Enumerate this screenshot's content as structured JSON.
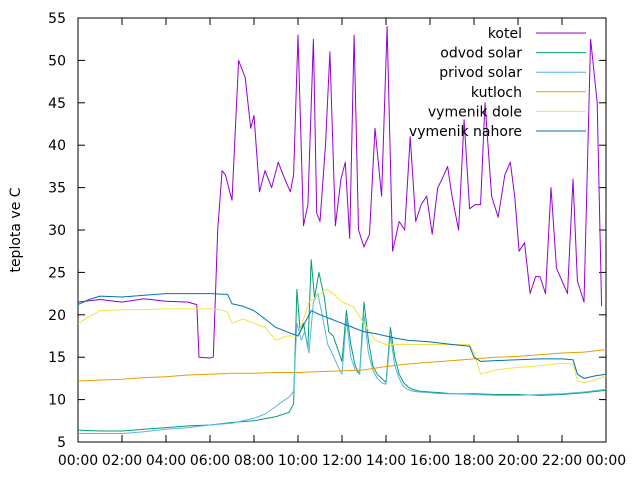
{
  "chart_data": {
    "type": "line",
    "ylabel": "teplota ve C",
    "xlabel": "",
    "ylim": [
      5,
      55
    ],
    "xlim": [
      0,
      24
    ],
    "y_ticks": [
      5,
      10,
      15,
      20,
      25,
      30,
      35,
      40,
      45,
      50,
      55
    ],
    "x_ticks": [
      0,
      2,
      4,
      6,
      8,
      10,
      12,
      14,
      16,
      18,
      20,
      22,
      24
    ],
    "x_tick_labels": [
      "00:00",
      "02:00",
      "04:00",
      "06:00",
      "08:00",
      "10:00",
      "12:00",
      "14:00",
      "16:00",
      "18:00",
      "20:00",
      "22:00",
      "00:00"
    ],
    "grid": false,
    "legend_position": "top-right",
    "series": [
      {
        "name": "kotel",
        "color": "#9400d3",
        "x": [
          0,
          1,
          2,
          3,
          4,
          5,
          5.4,
          5.5,
          6.0,
          6.15,
          6.35,
          6.55,
          6.7,
          7.0,
          7.3,
          7.6,
          7.85,
          8.0,
          8.25,
          8.5,
          8.8,
          9.1,
          9.4,
          9.65,
          9.8,
          10.0,
          10.25,
          10.45,
          10.7,
          10.85,
          11.0,
          11.25,
          11.45,
          11.7,
          11.95,
          12.15,
          12.35,
          12.55,
          12.75,
          13.0,
          13.25,
          13.5,
          13.8,
          14.05,
          14.3,
          14.6,
          14.85,
          15.1,
          15.35,
          15.6,
          15.85,
          16.1,
          16.35,
          16.55,
          16.8,
          17.0,
          17.3,
          17.55,
          17.8,
          18.05,
          18.3,
          18.5,
          18.8,
          19.1,
          19.4,
          19.65,
          19.85,
          20.05,
          20.3,
          20.55,
          20.8,
          21.0,
          21.25,
          21.5,
          21.75,
          22.0,
          22.25,
          22.5,
          22.7,
          23.0,
          23.3,
          23.6,
          23.8
        ],
        "values": [
          21.5,
          21.8,
          21.5,
          21.9,
          21.6,
          21.5,
          21.2,
          15.0,
          14.9,
          15.0,
          30.0,
          37.0,
          36.5,
          33.5,
          50.0,
          48.0,
          42.0,
          43.5,
          34.5,
          37.0,
          35.0,
          38.0,
          36.0,
          34.5,
          36.5,
          53.0,
          30.5,
          33.0,
          52.5,
          32.0,
          31.0,
          40.0,
          51.0,
          30.5,
          36.0,
          38.0,
          29.0,
          53.0,
          30.0,
          28.0,
          29.5,
          42.0,
          34.0,
          54.0,
          27.5,
          31.0,
          30.0,
          41.0,
          31.0,
          33.0,
          34.0,
          29.5,
          35.0,
          36.0,
          37.5,
          34.0,
          30.0,
          43.0,
          32.5,
          33.0,
          33.0,
          45.0,
          34.0,
          31.5,
          36.5,
          38.0,
          34.0,
          27.5,
          28.5,
          22.5,
          24.5,
          24.5,
          22.5,
          35.0,
          25.5,
          24.0,
          22.5,
          36.0,
          24.0,
          21.5,
          52.5,
          45.0,
          21.0
        ]
      },
      {
        "name": "odvod solar",
        "color": "#009e73",
        "x": [
          0,
          1,
          2,
          3,
          4,
          5,
          6,
          7,
          8,
          9,
          9.6,
          9.8,
          9.95,
          10.1,
          10.25,
          10.45,
          10.6,
          10.75,
          10.95,
          11.2,
          11.4,
          11.6,
          11.8,
          12.0,
          12.2,
          12.4,
          12.6,
          12.8,
          13.0,
          13.2,
          13.4,
          13.6,
          13.8,
          14.0,
          14.2,
          14.4,
          14.6,
          14.8,
          15.0,
          15.2,
          15.5,
          16.0,
          16.5,
          17.0,
          18.0,
          19.0,
          20.0,
          21.0,
          22.0,
          23.0,
          24.0
        ],
        "values": [
          6.4,
          6.3,
          6.3,
          6.5,
          6.7,
          6.9,
          7.0,
          7.3,
          7.5,
          8.0,
          8.5,
          9.5,
          23.0,
          18.0,
          19.0,
          16.0,
          26.5,
          22.0,
          25.0,
          22.0,
          18.0,
          17.5,
          16.0,
          14.5,
          20.5,
          16.5,
          14.0,
          13.0,
          21.5,
          17.0,
          14.0,
          13.0,
          12.5,
          12.0,
          18.5,
          15.0,
          13.0,
          12.0,
          11.5,
          11.2,
          11.0,
          10.9,
          10.8,
          10.7,
          10.7,
          10.6,
          10.6,
          10.5,
          10.6,
          10.8,
          11.1
        ]
      },
      {
        "name": "privod solar",
        "color": "#56b4e9",
        "x": [
          0,
          1,
          2,
          3,
          4,
          5,
          6,
          7,
          8,
          8.5,
          9.0,
          9.3,
          9.6,
          9.8,
          9.95,
          10.15,
          10.3,
          10.5,
          10.7,
          10.9,
          11.1,
          11.35,
          11.55,
          11.8,
          12.0,
          12.2,
          12.4,
          12.6,
          12.8,
          13.0,
          13.2,
          13.4,
          13.6,
          13.8,
          14.0,
          14.2,
          14.4,
          14.6,
          14.8,
          15.0,
          15.2,
          15.5,
          16.0,
          16.5,
          17.0,
          18.0,
          19.0,
          20.0,
          21.0,
          22.0,
          23.0,
          24.0
        ],
        "values": [
          6.0,
          6.0,
          6.0,
          6.2,
          6.5,
          6.7,
          7.0,
          7.2,
          7.8,
          8.3,
          9.2,
          9.8,
          10.3,
          11.0,
          19.0,
          17.0,
          18.0,
          15.5,
          21.5,
          22.5,
          20.0,
          16.5,
          15.5,
          14.0,
          13.0,
          19.5,
          15.0,
          13.5,
          13.0,
          20.0,
          15.5,
          13.5,
          12.5,
          12.0,
          11.8,
          17.5,
          14.0,
          12.5,
          11.5,
          11.2,
          11.0,
          10.9,
          10.8,
          10.7,
          10.7,
          10.6,
          10.5,
          10.5,
          10.6,
          10.7,
          10.9,
          11.2
        ]
      },
      {
        "name": "kutloch",
        "color": "#e69f00",
        "x": [
          0,
          1,
          2,
          3,
          4,
          5,
          6,
          7,
          8,
          9,
          10,
          11,
          12,
          13,
          14,
          15,
          16,
          17,
          18,
          19,
          20,
          21,
          22,
          23,
          24
        ],
        "values": [
          12.2,
          12.3,
          12.4,
          12.6,
          12.7,
          12.9,
          13.0,
          13.1,
          13.1,
          13.2,
          13.2,
          13.3,
          13.4,
          13.5,
          13.9,
          14.2,
          14.4,
          14.6,
          14.8,
          15.0,
          15.1,
          15.3,
          15.5,
          15.6,
          15.9
        ]
      },
      {
        "name": "vymenik dole",
        "color": "#f0e442",
        "x": [
          0,
          1,
          2,
          3,
          4,
          5,
          6,
          6.5,
          6.8,
          7.0,
          7.5,
          8.0,
          8.5,
          9.0,
          9.5,
          10.0,
          10.5,
          11.0,
          11.3,
          11.6,
          12.0,
          12.5,
          13.0,
          13.5,
          14.0,
          14.5,
          15.0,
          16.0,
          17.0,
          17.8,
          18.0,
          18.3,
          19.0,
          20.0,
          21.0,
          22.0,
          22.5,
          22.7,
          23.0,
          23.5,
          24.0
        ],
        "values": [
          19.0,
          20.5,
          20.6,
          20.6,
          20.7,
          20.7,
          20.7,
          20.6,
          20.3,
          19.0,
          19.5,
          19.0,
          18.5,
          17.0,
          17.5,
          17.5,
          21.5,
          22.5,
          23.0,
          22.5,
          21.5,
          21.0,
          19.0,
          17.0,
          16.5,
          16.5,
          16.5,
          16.5,
          16.5,
          16.5,
          15.5,
          13.0,
          13.5,
          13.8,
          14.0,
          14.3,
          14.2,
          12.2,
          12.0,
          12.3,
          12.8
        ]
      },
      {
        "name": "vymenik nahore",
        "color": "#0072b2",
        "x": [
          0,
          0.5,
          1,
          2,
          3,
          4,
          5,
          6,
          6.8,
          7.0,
          7.5,
          8.0,
          8.5,
          9.0,
          9.5,
          10.0,
          10.3,
          10.6,
          11.0,
          11.5,
          12.0,
          12.5,
          13.0,
          13.5,
          14.0,
          14.5,
          15.0,
          16.0,
          17.0,
          17.8,
          18.0,
          18.3,
          19.0,
          20.0,
          21.0,
          22.0,
          22.5,
          22.7,
          23.0,
          23.5,
          24.0
        ],
        "values": [
          21.2,
          21.8,
          22.2,
          22.1,
          22.3,
          22.5,
          22.5,
          22.5,
          22.4,
          21.3,
          21.0,
          20.5,
          19.5,
          18.5,
          18.0,
          17.5,
          19.0,
          20.5,
          20.0,
          19.5,
          19.0,
          18.5,
          18.0,
          17.8,
          17.5,
          17.2,
          17.0,
          16.8,
          16.5,
          16.3,
          15.0,
          14.5,
          14.6,
          14.7,
          14.8,
          14.8,
          14.7,
          13.0,
          12.5,
          12.8,
          13.0
        ]
      }
    ]
  }
}
